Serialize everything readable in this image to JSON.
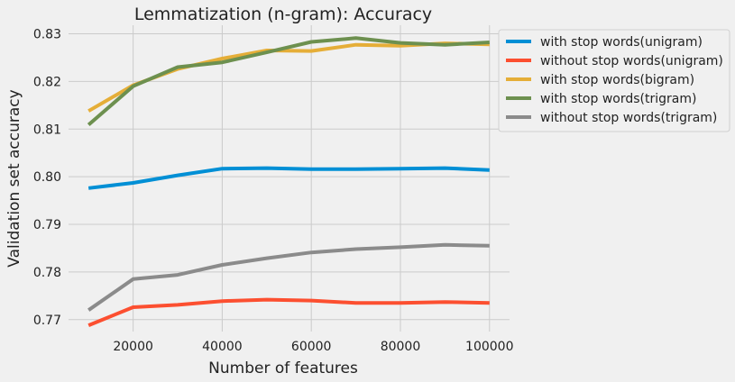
{
  "chart_data": {
    "type": "line",
    "title": "Lemmatization (n-gram): Accuracy",
    "xlabel": "Number of features",
    "ylabel": "Validation set accuracy",
    "x": [
      10000,
      20000,
      30000,
      40000,
      50000,
      60000,
      70000,
      80000,
      90000,
      100000
    ],
    "xticks": [
      20000,
      40000,
      60000,
      80000,
      100000
    ],
    "xlim": [
      5500,
      104500
    ],
    "yticks": [
      0.77,
      0.78,
      0.79,
      0.8,
      0.81,
      0.82,
      0.83
    ],
    "ytick_labels": [
      "0.77",
      "0.78",
      "0.79",
      "0.80",
      "0.81",
      "0.82",
      "0.83"
    ],
    "ylim": [
      0.7675,
      0.8318
    ],
    "grid": true,
    "legend_position": "outside-right",
    "series": [
      {
        "name": "with stop words(unigram)",
        "color": "#008fd5",
        "values": [
          0.7976,
          0.7987,
          0.8003,
          0.8017,
          0.8018,
          0.8016,
          0.8016,
          0.8017,
          0.8018,
          0.8014
        ]
      },
      {
        "name": "without stop words(unigram)",
        "color": "#fc4f30",
        "values": [
          0.7688,
          0.7726,
          0.7731,
          0.7739,
          0.7742,
          0.774,
          0.7735,
          0.7735,
          0.7737,
          0.7735
        ]
      },
      {
        "name": "with stop words(bigram)",
        "color": "#e5ae38",
        "values": [
          0.8138,
          0.8192,
          0.8226,
          0.8248,
          0.8265,
          0.8264,
          0.8277,
          0.8275,
          0.828,
          0.8278
        ]
      },
      {
        "name": "with stop words(trigram)",
        "color": "#6d904f",
        "values": [
          0.8109,
          0.819,
          0.823,
          0.824,
          0.8261,
          0.8283,
          0.8291,
          0.8281,
          0.8277,
          0.8282
        ]
      },
      {
        "name": "without stop words(trigram)",
        "color": "#8b8b8b",
        "values": [
          0.772,
          0.7785,
          0.7794,
          0.7815,
          0.7829,
          0.7841,
          0.7848,
          0.7852,
          0.7857,
          0.7855
        ]
      }
    ]
  }
}
